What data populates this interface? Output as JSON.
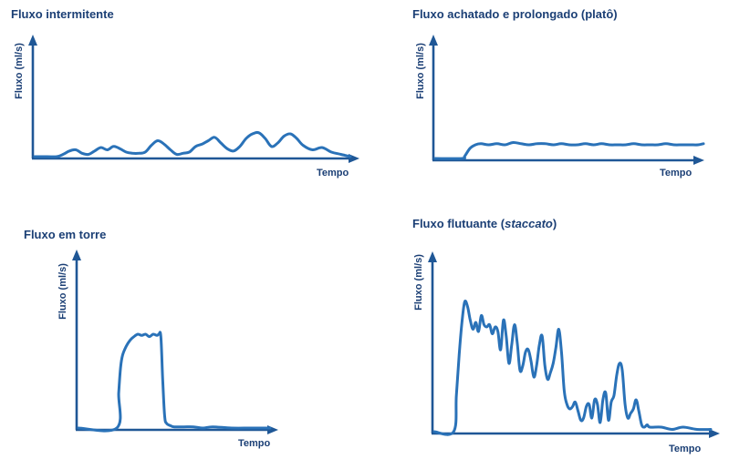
{
  "colors": {
    "axis": "#1f5796",
    "curve": "#2a72b8",
    "text": "#1b3f75"
  },
  "chart_data": [
    {
      "type": "line",
      "title": "Fluxo intermitente",
      "title_suffix": "",
      "xlabel": "Tempo",
      "ylabel": "Fluxo (ml/s)",
      "xlim": [
        0,
        100
      ],
      "ylim": [
        0,
        100
      ],
      "series": [
        {
          "x": [
            0,
            4,
            7,
            9,
            11,
            13,
            15,
            17,
            19,
            21,
            23,
            25,
            27,
            29,
            31,
            33,
            35,
            37,
            39,
            41,
            43,
            45,
            47,
            49,
            51,
            53,
            55,
            57,
            59,
            61,
            63,
            65,
            67,
            69,
            71,
            73,
            75,
            77,
            79,
            81,
            83,
            85,
            88,
            91,
            94,
            97,
            100
          ],
          "y": [
            0,
            0,
            0,
            2,
            5,
            6,
            3,
            2,
            5,
            8,
            6,
            9,
            7,
            4,
            3,
            3,
            4,
            10,
            14,
            11,
            6,
            2,
            3,
            4,
            9,
            11,
            14,
            17,
            12,
            7,
            5,
            9,
            16,
            20,
            21,
            16,
            9,
            12,
            18,
            20,
            16,
            10,
            6,
            8,
            4,
            2,
            0
          ]
        }
      ]
    },
    {
      "type": "line",
      "title": "Fluxo achatado e prolongado (platô)",
      "title_suffix": "",
      "xlabel": "Tempo",
      "ylabel": "Fluxo (ml/s)",
      "xlim": [
        0,
        100
      ],
      "ylim": [
        0,
        100
      ],
      "series": [
        {
          "x": [
            0,
            10,
            11,
            13,
            15,
            17,
            20,
            23,
            26,
            29,
            32,
            35,
            38,
            41,
            44,
            47,
            50,
            53,
            56,
            59,
            62,
            65,
            68,
            71,
            74,
            77,
            80,
            83,
            86,
            89,
            92,
            95,
            98,
            100
          ],
          "y": [
            0,
            0,
            2,
            9,
            12,
            13,
            12,
            13,
            12,
            14,
            13,
            12,
            13,
            13,
            12,
            13,
            12,
            12,
            13,
            12,
            13,
            12,
            12,
            12,
            13,
            12,
            12,
            12,
            13,
            12,
            12,
            12,
            12,
            13
          ]
        }
      ]
    },
    {
      "type": "line",
      "title": "Fluxo em torre",
      "title_suffix": "",
      "xlabel": "Tempo",
      "ylabel": "Fluxo (ml/s)",
      "xlim": [
        0,
        100
      ],
      "ylim": [
        0,
        100
      ],
      "series": [
        {
          "x": [
            0,
            20,
            21,
            22,
            23,
            25,
            27,
            29,
            31,
            33,
            35,
            37,
            39,
            41,
            42,
            43,
            44,
            45,
            46,
            48,
            50,
            55,
            60,
            65,
            70,
            80,
            90,
            100
          ],
          "y": [
            0,
            0,
            30,
            52,
            62,
            70,
            75,
            78,
            80,
            79,
            80,
            78,
            80,
            79,
            80,
            78,
            40,
            10,
            4,
            2,
            1,
            1,
            1,
            0,
            1,
            0,
            0,
            0
          ]
        }
      ]
    },
    {
      "type": "line",
      "title": "Fluxo flutuante (",
      "title_italic": "staccato",
      "title_suffix": ")",
      "xlabel": "Tempo",
      "ylabel": "Fluxo (ml/s)",
      "xlim": [
        0,
        100
      ],
      "ylim": [
        0,
        100
      ],
      "series": [
        {
          "x": [
            0,
            7,
            8,
            9,
            10,
            11,
            12,
            13,
            14,
            15,
            16,
            17,
            18,
            19,
            20,
            21,
            22,
            23,
            24,
            25,
            26,
            27,
            28,
            29,
            30,
            31,
            32,
            33,
            34,
            35,
            36,
            37,
            38,
            39,
            40,
            41,
            42,
            43,
            44,
            45,
            46,
            47,
            48,
            49,
            50,
            51,
            52,
            53,
            54,
            55,
            56,
            57,
            58,
            59,
            60,
            61,
            62,
            63,
            64,
            65,
            66,
            67,
            68,
            69,
            70,
            71,
            72,
            73,
            74,
            75,
            76,
            77,
            78,
            82,
            86,
            90,
            95,
            100
          ],
          "y": [
            0,
            0,
            16,
            34,
            48,
            57,
            55,
            49,
            45,
            48,
            44,
            51,
            47,
            46,
            47,
            43,
            46,
            44,
            36,
            49,
            42,
            30,
            38,
            47,
            39,
            27,
            29,
            35,
            36,
            31,
            24,
            29,
            38,
            42,
            29,
            23,
            26,
            30,
            37,
            45,
            35,
            18,
            12,
            10,
            11,
            13,
            9,
            5,
            6,
            11,
            12,
            6,
            14,
            12,
            4,
            14,
            17,
            5,
            13,
            16,
            25,
            30,
            27,
            12,
            6,
            8,
            10,
            14,
            9,
            3,
            2,
            3,
            2,
            2,
            1,
            2,
            1,
            1
          ]
        }
      ]
    }
  ]
}
